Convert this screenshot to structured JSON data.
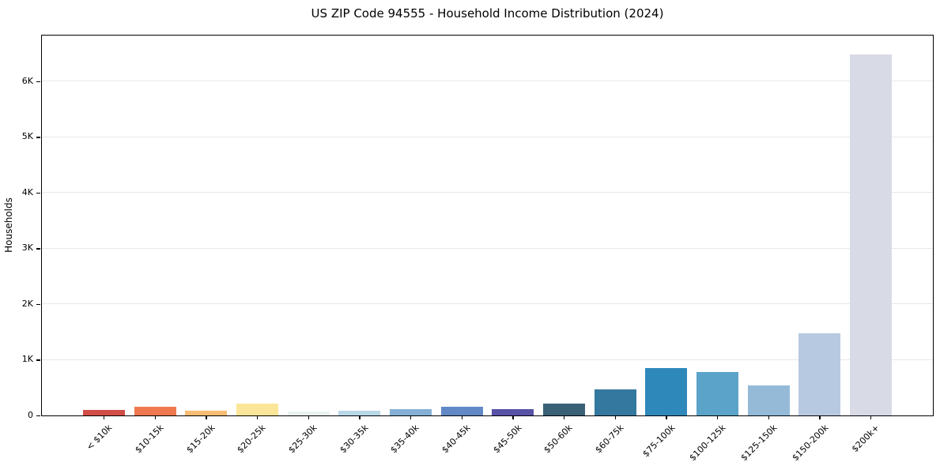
{
  "chart_data": {
    "type": "bar",
    "title": "US ZIP Code 94555 - Household Income Distribution (2024)",
    "xlabel": "",
    "ylabel": "Households",
    "categories": [
      "< $10k",
      "$10-15k",
      "$15-20k",
      "$20-25k",
      "$25-30k",
      "$30-35k",
      "$35-40k",
      "$40-45k",
      "$45-50k",
      "$50-60k",
      "$60-75k",
      "$75-100k",
      "$100-125k",
      "$125-150k",
      "$150-200k",
      "$200k+"
    ],
    "values": [
      95,
      150,
      85,
      210,
      70,
      80,
      110,
      150,
      120,
      210,
      470,
      850,
      780,
      545,
      1480,
      6480
    ],
    "bar_colors": [
      "#d04e46",
      "#f0784f",
      "#f8bc74",
      "#fbe598",
      "#e9f3ee",
      "#b8d8e8",
      "#85b0d5",
      "#6289c5",
      "#5752a6",
      "#3a6076",
      "#35789f",
      "#2f88ba",
      "#5ba3c8",
      "#94bad8",
      "#b7c9e0",
      "#d8dae6"
    ],
    "ylim": [
      0,
      6820
    ],
    "yticks": [
      0,
      1000,
      2000,
      3000,
      4000,
      5000,
      6000
    ],
    "ytick_labels": [
      "0",
      "1K",
      "2K",
      "3K",
      "4K",
      "5K",
      "6K"
    ],
    "grid": "horizontal",
    "gridline_color": "#e8e8e8",
    "legend": "none",
    "background": "#ffffff",
    "x_tick_rotation": 45
  }
}
